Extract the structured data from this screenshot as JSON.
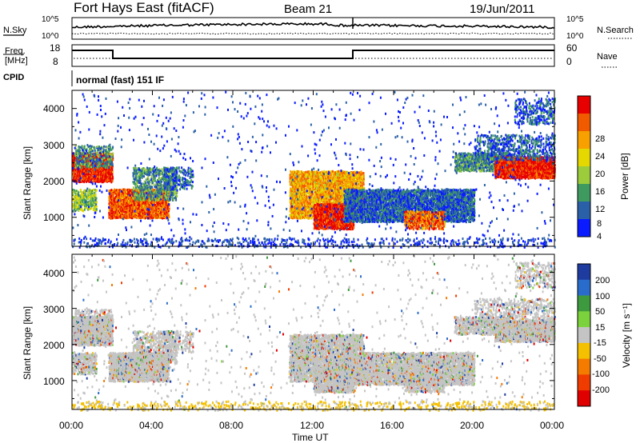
{
  "header": {
    "station": "Fort Hays East (fitACF)",
    "beam": "Beam 21",
    "date": "19/Jun/2011"
  },
  "strips": {
    "nsky_label": "N.Sky",
    "nsearch_label": "N.Search",
    "noise_ticks": [
      "10^5",
      "10^0"
    ],
    "freq_label_1": "Freq.",
    "freq_label_2": "[MHz]",
    "freq_ticks": [
      "18",
      "8"
    ],
    "nave_label": "Nave",
    "nave_ticks": [
      "60",
      "0"
    ],
    "cpid_label": "CPID",
    "cpid_text": "normal (fast) 151 IF"
  },
  "chart_data": [
    {
      "type": "heatmap",
      "name": "power",
      "ylabel": "Slant Range [km]",
      "xlabel": "",
      "ylim": [
        200,
        4500
      ],
      "xlim": [
        0,
        24
      ],
      "y_ticks": [
        "4000",
        "3000",
        "2000",
        "1000"
      ],
      "colorbar": {
        "label": "Power [dB]",
        "ticks": [
          "28",
          "24",
          "20",
          "16",
          "12",
          "8",
          "4"
        ],
        "colors": [
          "#e80000",
          "#f25a00",
          "#f7a000",
          "#e4d800",
          "#9ccc3c",
          "#3f9a60",
          "#2a60a8",
          "#0a1cff"
        ]
      }
    },
    {
      "type": "heatmap",
      "name": "velocity",
      "ylabel": "Slant Range [km]",
      "xlabel": "Time UT",
      "ylim": [
        200,
        4500
      ],
      "xlim": [
        0,
        24
      ],
      "y_ticks": [
        "4000",
        "3000",
        "2000",
        "1000"
      ],
      "x_ticks": [
        "00:00",
        "04:00",
        "08:00",
        "12:00",
        "16:00",
        "20:00",
        "00:00"
      ],
      "colorbar": {
        "label": "Velocity [m s⁻¹]",
        "ticks": [
          "200",
          "100",
          "50",
          "15",
          "-15",
          "-50",
          "-100",
          "-200"
        ],
        "colors": [
          "#1e3ca0",
          "#2a6ccc",
          "#3e9a3e",
          "#7cd23c",
          "#c4c4c4",
          "#f4c000",
          "#f47a00",
          "#f03c00",
          "#e00000"
        ]
      }
    }
  ]
}
